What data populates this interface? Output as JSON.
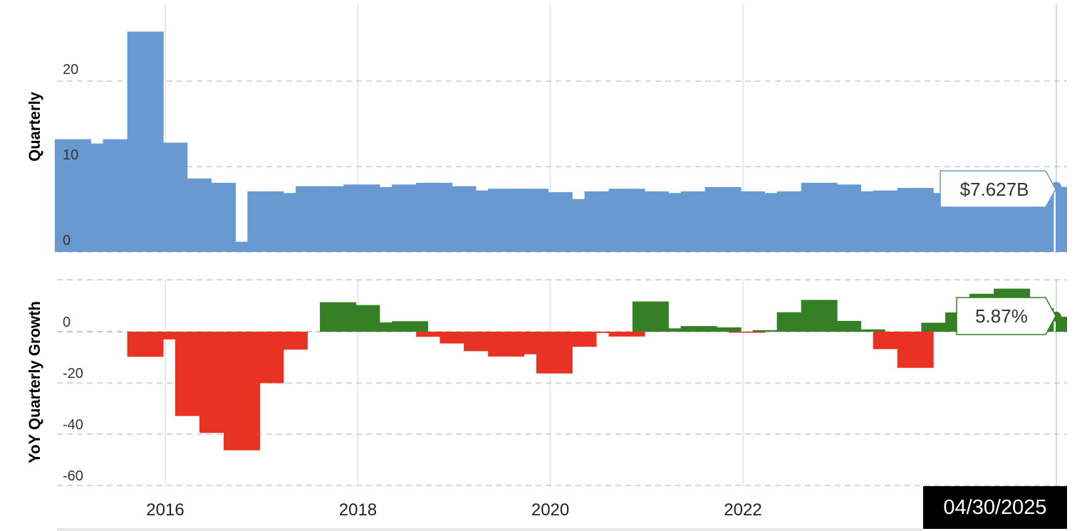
{
  "chart_data": [
    {
      "type": "bar",
      "ylabel": "Quarterly",
      "ylim": [
        0,
        29
      ],
      "yticks": [
        0,
        10,
        20
      ],
      "color": "#6899d0",
      "x": [
        "2015-03-31",
        "2015-06-30",
        "2015-09-30",
        "2015-12-31",
        "2016-03-31",
        "2016-06-30",
        "2016-09-30",
        "2016-12-31",
        "2017-03-31",
        "2017-06-30",
        "2017-09-30",
        "2017-12-31",
        "2018-03-31",
        "2018-06-30",
        "2018-09-30",
        "2018-12-31",
        "2019-03-31",
        "2019-06-30",
        "2019-09-30",
        "2019-12-31",
        "2020-03-31",
        "2020-06-30",
        "2020-09-30",
        "2020-12-31",
        "2021-03-31",
        "2021-06-30",
        "2021-09-30",
        "2021-12-31",
        "2022-03-31",
        "2022-06-30",
        "2022-09-30",
        "2022-12-31",
        "2023-03-31",
        "2023-06-30",
        "2023-09-30",
        "2023-12-31",
        "2024-03-31",
        "2024-06-30",
        "2024-09-30",
        "2024-12-31",
        "2025-03-31",
        "2025-04-30"
      ],
      "values": [
        13.2,
        12.7,
        13.2,
        25.8,
        12.8,
        8.6,
        8.1,
        1.2,
        7.1,
        6.9,
        7.7,
        7.7,
        7.9,
        7.6,
        7.9,
        8.1,
        7.7,
        7.2,
        7.4,
        7.4,
        7.0,
        6.2,
        7.1,
        7.4,
        7.1,
        6.9,
        7.1,
        7.6,
        7.1,
        6.9,
        7.1,
        8.1,
        7.9,
        7.1,
        7.2,
        7.5,
        6.9,
        7.3,
        7.4,
        7.7,
        7.6,
        7.627
      ],
      "tooltip": "$7.627B"
    },
    {
      "type": "bar",
      "ylabel": "YoY Quarterly Growth",
      "ylim": [
        -65,
        20
      ],
      "yticks": [
        0,
        -20,
        -40,
        -60
      ],
      "positive_color": "#357f24",
      "negative_color": "#e83223",
      "x": [
        "2015-03-31",
        "2015-06-30",
        "2015-09-30",
        "2015-12-31",
        "2016-03-31",
        "2016-06-30",
        "2016-09-30",
        "2016-12-31",
        "2017-03-31",
        "2017-06-30",
        "2017-09-30",
        "2017-12-31",
        "2018-03-31",
        "2018-06-30",
        "2018-09-30",
        "2018-12-31",
        "2019-03-31",
        "2019-06-30",
        "2019-09-30",
        "2019-12-31",
        "2020-03-31",
        "2020-06-30",
        "2020-09-30",
        "2020-12-31",
        "2021-03-31",
        "2021-06-30",
        "2021-09-30",
        "2021-12-31",
        "2022-03-31",
        "2022-06-30",
        "2022-09-30",
        "2022-12-31",
        "2023-03-31",
        "2023-06-30",
        "2023-09-30",
        "2023-12-31",
        "2024-03-31",
        "2024-06-30",
        "2024-09-30",
        "2024-12-31",
        "2025-03-31",
        "2025-04-30"
      ],
      "values": [
        null,
        null,
        null,
        -9.8,
        -3.0,
        -32.9,
        -39.5,
        -46.3,
        -20.1,
        -7.0,
        null,
        11.5,
        10.4,
        3.6,
        4.1,
        -2.0,
        -4.6,
        -7.6,
        -9.7,
        -8.8,
        -16.3,
        -5.9,
        -0.5,
        -1.9,
        11.8,
        1.3,
        2.2,
        1.7,
        -0.2,
        0.6,
        7.6,
        12.4,
        4.2,
        0.9,
        -6.8,
        -14.1,
        3.5,
        7.5,
        14.8,
        16.8,
        9.2,
        5.87
      ],
      "tooltip": "5.87%"
    }
  ],
  "x_axis": {
    "ticks": [
      "2016",
      "2018",
      "2020",
      "2022"
    ]
  },
  "date_badge": "04/30/2025"
}
